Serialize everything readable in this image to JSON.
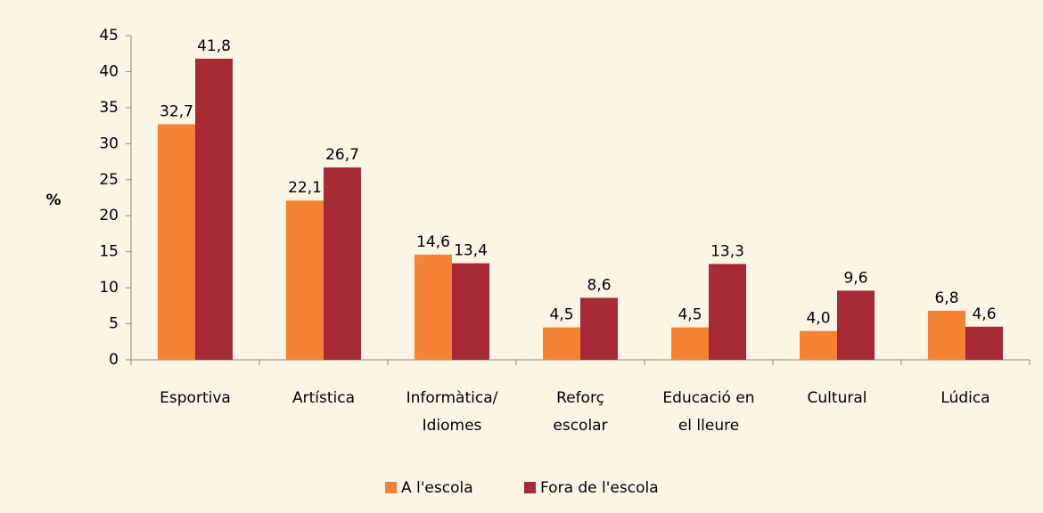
{
  "chart_data": {
    "type": "bar",
    "y_label": "%",
    "categories": [
      [
        "Esportiva"
      ],
      [
        "Artística"
      ],
      [
        "Informàtica/",
        "Idiomes"
      ],
      [
        "Reforç",
        "escolar"
      ],
      [
        "Educació en",
        "el lleure"
      ],
      [
        "Cultural"
      ],
      [
        "Lúdica"
      ]
    ],
    "series": [
      {
        "name": "A l'escola",
        "color": "#f58233",
        "values": [
          32.7,
          22.1,
          14.6,
          4.5,
          4.5,
          4.0,
          6.8
        ],
        "value_labels": [
          "32,7",
          "22,1",
          "14,6",
          "4,5",
          "4,5",
          "4,0",
          "6,8"
        ]
      },
      {
        "name": "Fora de l'escola",
        "color": "#a52a35",
        "values": [
          41.8,
          26.7,
          13.4,
          8.6,
          13.3,
          9.6,
          4.6
        ],
        "value_labels": [
          "41,8",
          "26,7",
          "13,4",
          "8,6",
          "13,3",
          "9,6",
          "4,6"
        ]
      }
    ],
    "ylim": [
      0,
      45
    ],
    "yticks": [
      0,
      5,
      10,
      15,
      20,
      25,
      30,
      35,
      40,
      45
    ],
    "grid": false,
    "legend": "bottom"
  }
}
